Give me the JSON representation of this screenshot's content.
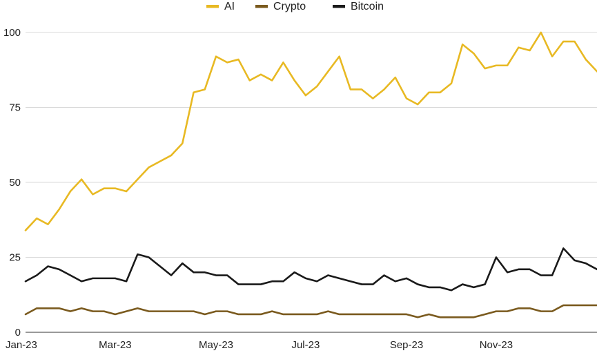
{
  "chart_data": {
    "type": "line",
    "title": "",
    "xlabel": "",
    "ylabel": "",
    "x_tick_labels": [
      "Jan-23",
      "Mar-23",
      "May-23",
      "Jul-23",
      "Sep-23",
      "Nov-23"
    ],
    "x_tick_weeks": [
      0,
      8,
      17,
      25,
      34,
      42
    ],
    "y_ticks": [
      0,
      25,
      50,
      75,
      100
    ],
    "ylim": [
      0,
      100
    ],
    "grid": true,
    "legend_position": "top-center",
    "series": [
      {
        "name": "AI",
        "color": "#e8b923",
        "values": [
          34,
          38,
          36,
          41,
          47,
          51,
          46,
          48,
          48,
          47,
          51,
          55,
          57,
          59,
          63,
          80,
          81,
          92,
          90,
          91,
          84,
          86,
          84,
          90,
          84,
          79,
          82,
          87,
          92,
          81,
          81,
          78,
          81,
          85,
          78,
          76,
          80,
          80,
          83,
          96,
          93,
          88,
          89,
          89,
          95,
          94,
          100,
          92,
          97,
          97,
          91,
          87
        ]
      },
      {
        "name": "Crypto",
        "color": "#7a5a1e",
        "values": [
          6,
          8,
          8,
          8,
          7,
          8,
          7,
          7,
          6,
          7,
          8,
          7,
          7,
          7,
          7,
          7,
          6,
          7,
          7,
          6,
          6,
          6,
          7,
          6,
          6,
          6,
          6,
          7,
          6,
          6,
          6,
          6,
          6,
          6,
          6,
          5,
          6,
          5,
          5,
          5,
          5,
          6,
          7,
          7,
          8,
          8,
          7,
          7,
          9,
          9,
          9,
          9
        ]
      },
      {
        "name": "Bitcoin",
        "color": "#1a1a1a",
        "values": [
          17,
          19,
          22,
          21,
          19,
          17,
          18,
          18,
          18,
          17,
          26,
          25,
          22,
          19,
          23,
          20,
          20,
          19,
          19,
          16,
          16,
          16,
          17,
          17,
          20,
          18,
          17,
          19,
          18,
          17,
          16,
          16,
          19,
          17,
          18,
          16,
          15,
          15,
          14,
          16,
          15,
          16,
          25,
          20,
          21,
          21,
          19,
          19,
          28,
          24,
          23,
          21
        ]
      }
    ]
  }
}
